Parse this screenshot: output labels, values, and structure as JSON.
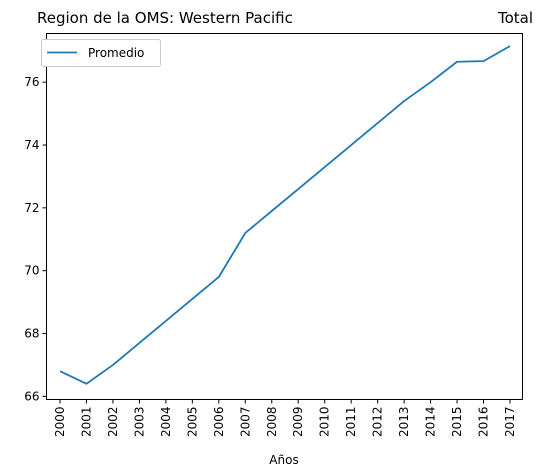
{
  "chart_data": {
    "type": "line",
    "title_left": "Region de la OMS: Western Pacific",
    "title_right": "Total",
    "xlabel": "Años",
    "ylabel": "",
    "x": [
      "2000",
      "2001",
      "2002",
      "2003",
      "2004",
      "2005",
      "2006",
      "2007",
      "2008",
      "2009",
      "2010",
      "2011",
      "2012",
      "2013",
      "2014",
      "2015",
      "2016",
      "2017"
    ],
    "series": [
      {
        "name": "Promedio",
        "color": "#1f77b4",
        "values": [
          66.8,
          66.4,
          67.0,
          67.7,
          68.4,
          69.1,
          69.8,
          71.2,
          71.9,
          72.6,
          73.3,
          74.0,
          74.7,
          75.4,
          76.0,
          76.65,
          76.67,
          77.15
        ]
      }
    ],
    "ylim": [
      65.9,
      77.55
    ],
    "yticks": [
      66,
      68,
      70,
      72,
      74,
      76
    ],
    "legend": "upper-left",
    "grid": false
  }
}
